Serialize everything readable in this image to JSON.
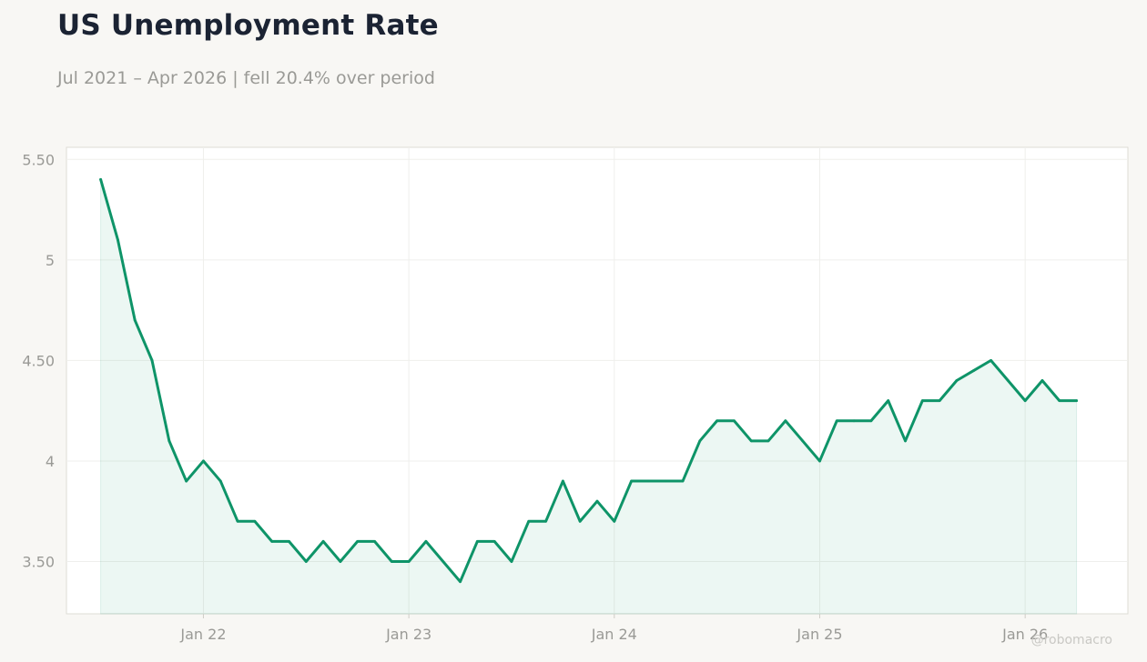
{
  "title": "US Unemployment Rate",
  "subtitle": "Jul 2021 – Apr 2026 | fell 20.4% over period",
  "watermark": "@robomacro",
  "colors": {
    "line": "#0e9468",
    "fill": "#0e9468",
    "text_dark": "#1b2333",
    "text_muted": "#9a9a96",
    "background": "#f8f7f4",
    "plot_background": "#ffffff"
  },
  "chart_data": {
    "type": "area",
    "title": "US Unemployment Rate",
    "subtitle": "Jul 2021 – Apr 2026 | fell 20.4% over period",
    "xlabel": "",
    "ylabel": "",
    "grid": true,
    "ylim": [
      3.24,
      5.56
    ],
    "xlim": [
      "2021-05",
      "2026-07"
    ],
    "y_ticks": [
      3.5,
      4,
      4.5,
      5,
      5.5
    ],
    "y_tick_labels": [
      "3.50",
      "4",
      "4.50",
      "5",
      "5.50"
    ],
    "x_ticks": [
      "2022-01",
      "2023-01",
      "2024-01",
      "2025-01",
      "2026-01"
    ],
    "x_tick_labels": [
      "Jan 22",
      "Jan 23",
      "Jan 24",
      "Jan 25",
      "Jan 26"
    ],
    "series": [
      {
        "x": [
          "2021-07",
          "2021-08",
          "2021-09",
          "2021-10",
          "2021-11",
          "2021-12",
          "2022-01",
          "2022-02",
          "2022-03",
          "2022-04",
          "2022-05",
          "2022-06",
          "2022-07",
          "2022-08",
          "2022-09",
          "2022-10",
          "2022-11",
          "2022-12",
          "2023-01",
          "2023-02",
          "2023-03",
          "2023-04",
          "2023-05",
          "2023-06",
          "2023-07",
          "2023-08",
          "2023-09",
          "2023-10",
          "2023-11",
          "2023-12",
          "2024-01",
          "2024-02",
          "2024-03",
          "2024-04",
          "2024-05",
          "2024-06",
          "2024-07",
          "2024-08",
          "2024-09",
          "2024-10",
          "2024-11",
          "2024-12",
          "2025-01",
          "2025-02",
          "2025-03",
          "2025-04",
          "2025-05",
          "2025-06",
          "2025-07",
          "2025-08",
          "2025-09",
          "2025-10",
          "2025-11",
          "2025-12",
          "2026-01",
          "2026-02",
          "2026-03",
          "2026-04"
        ],
        "values": [
          5.4,
          5.1,
          4.7,
          4.5,
          4.1,
          3.9,
          4.0,
          3.9,
          3.7,
          3.7,
          3.6,
          3.6,
          3.5,
          3.6,
          3.5,
          3.6,
          3.6,
          3.5,
          3.5,
          3.6,
          3.5,
          3.4,
          3.6,
          3.6,
          3.5,
          3.7,
          3.7,
          3.9,
          3.7,
          3.8,
          3.7,
          3.9,
          3.9,
          3.9,
          3.9,
          4.1,
          4.2,
          4.2,
          4.1,
          4.1,
          4.2,
          4.1,
          4.0,
          4.2,
          4.2,
          4.2,
          4.3,
          4.1,
          4.3,
          4.3,
          4.4,
          4.45,
          4.5,
          4.4,
          4.3,
          4.4,
          4.3,
          4.3
        ]
      }
    ]
  }
}
